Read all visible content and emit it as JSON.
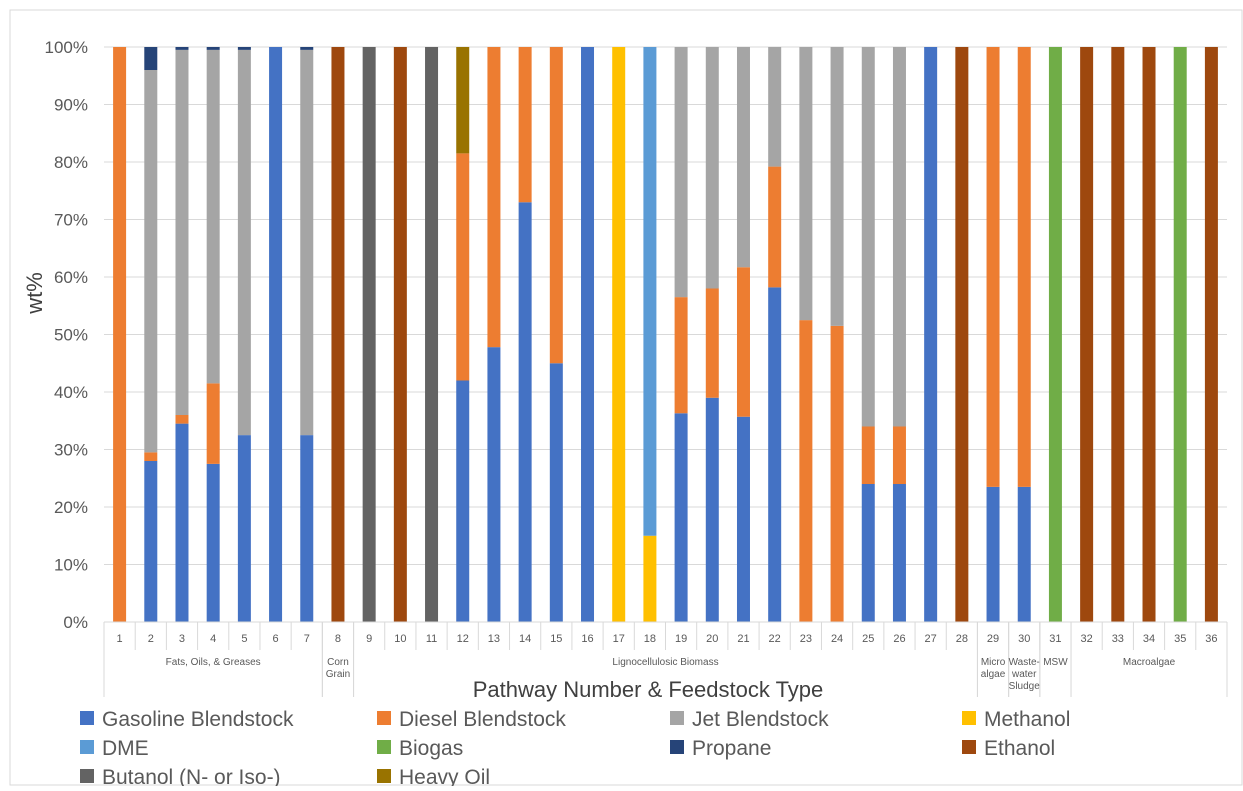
{
  "chart_data": {
    "type": "bar",
    "stacked": true,
    "title": "",
    "xlabel": "Pathway Number & Feedstock Type",
    "ylabel": "wt%",
    "ylim": [
      0,
      100
    ],
    "yticks": [
      "0%",
      "10%",
      "20%",
      "30%",
      "40%",
      "50%",
      "60%",
      "70%",
      "80%",
      "90%",
      "100%"
    ],
    "grid": true,
    "legend_position": "bottom",
    "categories": [
      "1",
      "2",
      "3",
      "4",
      "5",
      "6",
      "7",
      "8",
      "9",
      "10",
      "11",
      "12",
      "13",
      "14",
      "15",
      "16",
      "17",
      "18",
      "19",
      "20",
      "21",
      "22",
      "23",
      "24",
      "25",
      "26",
      "27",
      "28",
      "29",
      "30",
      "31",
      "32",
      "33",
      "34",
      "35",
      "36"
    ],
    "groups": [
      {
        "label": [
          "Fats, Oils, & Greases"
        ],
        "start": 1,
        "end": 7
      },
      {
        "label": [
          "Corn",
          "Grain"
        ],
        "start": 8,
        "end": 8
      },
      {
        "label": [
          "Lignocellulosic Biomass"
        ],
        "start": 9,
        "end": 28
      },
      {
        "label": [
          "Micro",
          "algae"
        ],
        "start": 29,
        "end": 29
      },
      {
        "label": [
          "Waste-",
          "water",
          "Sludge"
        ],
        "start": 30,
        "end": 30
      },
      {
        "label": [
          "MSW"
        ],
        "start": 31,
        "end": 31
      },
      {
        "label": [
          "Macroalgae"
        ],
        "start": 32,
        "end": 36
      }
    ],
    "series": [
      {
        "name": "Gasoline Blendstock",
        "color": "#4472c4",
        "values": [
          0,
          28,
          34.5,
          27.5,
          32.5,
          100,
          32.5,
          0,
          0,
          0,
          0,
          42,
          47.8,
          73,
          45,
          100,
          0,
          0,
          36.3,
          39,
          35.7,
          58.2,
          0,
          0,
          24,
          24,
          100,
          0,
          23.5,
          23.5,
          0,
          0,
          0,
          0,
          0,
          0
        ]
      },
      {
        "name": "Diesel Blendstock",
        "color": "#ed7d31",
        "values": [
          100,
          1.5,
          1.5,
          14,
          0,
          0,
          0,
          0,
          0,
          0,
          0,
          39.5,
          52.2,
          27,
          55,
          0,
          0,
          0,
          20.2,
          19,
          26,
          21,
          52.5,
          51.5,
          10,
          10,
          0,
          0,
          76.5,
          76.5,
          0,
          0,
          0,
          0,
          0,
          0
        ]
      },
      {
        "name": "Jet Blendstock",
        "color": "#a5a5a5",
        "values": [
          0,
          66.5,
          63.5,
          58,
          67,
          0,
          67,
          0,
          0,
          0,
          0,
          0,
          0,
          0,
          0,
          0,
          0,
          0,
          43.5,
          42,
          38.3,
          20.8,
          47.5,
          48.5,
          66,
          66,
          0,
          0,
          0,
          0,
          0,
          0,
          0,
          0,
          0,
          0
        ]
      },
      {
        "name": "Methanol",
        "color": "#ffc000",
        "values": [
          0,
          0,
          0,
          0,
          0,
          0,
          0,
          0,
          0,
          0,
          0,
          0,
          0,
          0,
          0,
          0,
          100,
          15,
          0,
          0,
          0,
          0,
          0,
          0,
          0,
          0,
          0,
          0,
          0,
          0,
          0,
          0,
          0,
          0,
          0,
          0
        ]
      },
      {
        "name": "DME",
        "color": "#5b9bd5",
        "values": [
          0,
          0,
          0,
          0,
          0,
          0,
          0,
          0,
          0,
          0,
          0,
          0,
          0,
          0,
          0,
          0,
          0,
          85,
          0,
          0,
          0,
          0,
          0,
          0,
          0,
          0,
          0,
          0,
          0,
          0,
          0,
          0,
          0,
          0,
          0,
          0
        ]
      },
      {
        "name": "Biogas",
        "color": "#70ad47",
        "values": [
          0,
          0,
          0,
          0,
          0,
          0,
          0,
          0,
          0,
          0,
          0,
          0,
          0,
          0,
          0,
          0,
          0,
          0,
          0,
          0,
          0,
          0,
          0,
          0,
          0,
          0,
          0,
          0,
          0,
          0,
          100,
          0,
          0,
          0,
          100,
          0
        ]
      },
      {
        "name": "Propane",
        "color": "#264478",
        "values": [
          0,
          4,
          0.5,
          0.5,
          0.5,
          0,
          0.5,
          0,
          0,
          0,
          0,
          0,
          0,
          0,
          0,
          0,
          0,
          0,
          0,
          0,
          0,
          0,
          0,
          0,
          0,
          0,
          0,
          0,
          0,
          0,
          0,
          0,
          0,
          0,
          0,
          0
        ]
      },
      {
        "name": "Ethanol",
        "color": "#9e480e",
        "values": [
          0,
          0,
          0,
          0,
          0,
          0,
          0,
          100,
          0,
          100,
          0,
          0,
          0,
          0,
          0,
          0,
          0,
          0,
          0,
          0,
          0,
          0,
          0,
          0,
          0,
          0,
          0,
          100,
          0,
          0,
          0,
          100,
          100,
          100,
          0,
          100
        ]
      },
      {
        "name": "Butanol (N- or Iso-)",
        "color": "#636363",
        "values": [
          0,
          0,
          0,
          0,
          0,
          0,
          0,
          0,
          100,
          0,
          100,
          0,
          0,
          0,
          0,
          0,
          0,
          0,
          0,
          0,
          0,
          0,
          0,
          0,
          0,
          0,
          0,
          0,
          0,
          0,
          0,
          0,
          0,
          0,
          0,
          0
        ]
      },
      {
        "name": "Heavy Oil",
        "color": "#997300",
        "values": [
          0,
          0,
          0,
          0,
          0,
          0,
          0,
          0,
          0,
          0,
          0,
          18.5,
          0,
          0,
          0,
          0,
          0,
          0,
          0,
          0,
          0,
          0,
          0,
          0,
          0,
          0,
          0,
          0,
          0,
          0,
          0,
          0,
          0,
          0,
          0,
          0
        ]
      }
    ]
  }
}
